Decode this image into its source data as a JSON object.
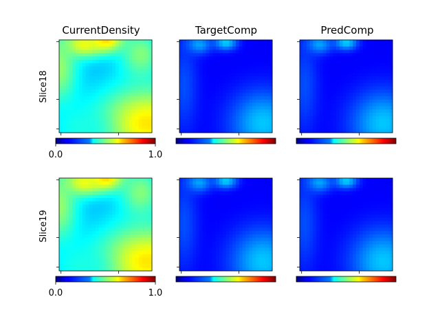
{
  "column_titles": [
    "CurrentDensity",
    "TargetComp",
    "PredComp"
  ],
  "row_labels": [
    "Slice18",
    "Slice19"
  ],
  "colorbar": {
    "min_label": "0.0",
    "max_label": "1.0",
    "colormap": "jet",
    "range": [
      0,
      1
    ]
  },
  "chart_data": {
    "type": "heatmap",
    "colormap": "jet",
    "value_range": [
      0,
      1
    ],
    "panels": [
      {
        "row": "Slice18",
        "column": "CurrentDensity",
        "features": {
          "background": 0.3,
          "blobs": [
            {
              "cx": 0.5,
              "cy": 0.0,
              "rx": 0.22,
              "ry": 0.14,
              "v": 0.68
            },
            {
              "cx": 0.25,
              "cy": 0.05,
              "rx": 0.22,
              "ry": 0.14,
              "v": 0.62
            },
            {
              "cx": 0.0,
              "cy": 0.3,
              "rx": 0.2,
              "ry": 0.4,
              "v": 0.52
            },
            {
              "cx": 0.88,
              "cy": 0.15,
              "rx": 0.22,
              "ry": 0.25,
              "v": 0.5
            },
            {
              "cx": 0.95,
              "cy": 0.9,
              "rx": 0.55,
              "ry": 0.4,
              "v": 0.65
            },
            {
              "cx": 0.25,
              "cy": 0.95,
              "rx": 0.3,
              "ry": 0.22,
              "v": 0.4
            }
          ]
        }
      },
      {
        "row": "Slice18",
        "column": "TargetComp",
        "features": {
          "background": 0.12,
          "blobs": [
            {
              "cx": 0.2,
              "cy": 0.05,
              "rx": 0.14,
              "ry": 0.1,
              "v": 0.3
            },
            {
              "cx": 0.5,
              "cy": 0.03,
              "rx": 0.12,
              "ry": 0.08,
              "v": 0.33
            },
            {
              "cx": 0.9,
              "cy": 0.9,
              "rx": 0.35,
              "ry": 0.35,
              "v": 0.32
            },
            {
              "cx": 0.05,
              "cy": 0.5,
              "rx": 0.15,
              "ry": 0.5,
              "v": 0.2
            }
          ]
        }
      },
      {
        "row": "Slice18",
        "column": "PredComp",
        "features": {
          "background": 0.12,
          "blobs": [
            {
              "cx": 0.2,
              "cy": 0.05,
              "rx": 0.14,
              "ry": 0.1,
              "v": 0.3
            },
            {
              "cx": 0.5,
              "cy": 0.03,
              "rx": 0.12,
              "ry": 0.08,
              "v": 0.33
            },
            {
              "cx": 0.9,
              "cy": 0.9,
              "rx": 0.35,
              "ry": 0.35,
              "v": 0.32
            },
            {
              "cx": 0.05,
              "cy": 0.5,
              "rx": 0.15,
              "ry": 0.5,
              "v": 0.2
            }
          ]
        }
      },
      {
        "row": "Slice19",
        "column": "CurrentDensity",
        "features": {
          "background": 0.3,
          "blobs": [
            {
              "cx": 0.5,
              "cy": 0.0,
              "rx": 0.22,
              "ry": 0.14,
              "v": 0.68
            },
            {
              "cx": 0.25,
              "cy": 0.05,
              "rx": 0.22,
              "ry": 0.14,
              "v": 0.62
            },
            {
              "cx": 0.0,
              "cy": 0.3,
              "rx": 0.2,
              "ry": 0.4,
              "v": 0.52
            },
            {
              "cx": 0.88,
              "cy": 0.15,
              "rx": 0.22,
              "ry": 0.25,
              "v": 0.5
            },
            {
              "cx": 0.95,
              "cy": 0.9,
              "rx": 0.55,
              "ry": 0.4,
              "v": 0.65
            },
            {
              "cx": 0.25,
              "cy": 0.95,
              "rx": 0.3,
              "ry": 0.22,
              "v": 0.4
            }
          ]
        }
      },
      {
        "row": "Slice19",
        "column": "TargetComp",
        "features": {
          "background": 0.12,
          "blobs": [
            {
              "cx": 0.2,
              "cy": 0.05,
              "rx": 0.14,
              "ry": 0.1,
              "v": 0.3
            },
            {
              "cx": 0.5,
              "cy": 0.03,
              "rx": 0.12,
              "ry": 0.08,
              "v": 0.33
            },
            {
              "cx": 0.9,
              "cy": 0.9,
              "rx": 0.35,
              "ry": 0.35,
              "v": 0.32
            },
            {
              "cx": 0.05,
              "cy": 0.5,
              "rx": 0.15,
              "ry": 0.5,
              "v": 0.2
            }
          ]
        }
      },
      {
        "row": "Slice19",
        "column": "PredComp",
        "features": {
          "background": 0.12,
          "blobs": [
            {
              "cx": 0.2,
              "cy": 0.05,
              "rx": 0.14,
              "ry": 0.1,
              "v": 0.3
            },
            {
              "cx": 0.5,
              "cy": 0.03,
              "rx": 0.12,
              "ry": 0.08,
              "v": 0.33
            },
            {
              "cx": 0.9,
              "cy": 0.9,
              "rx": 0.35,
              "ry": 0.35,
              "v": 0.32
            },
            {
              "cx": 0.05,
              "cy": 0.5,
              "rx": 0.15,
              "ry": 0.5,
              "v": 0.2
            }
          ]
        }
      }
    ]
  }
}
